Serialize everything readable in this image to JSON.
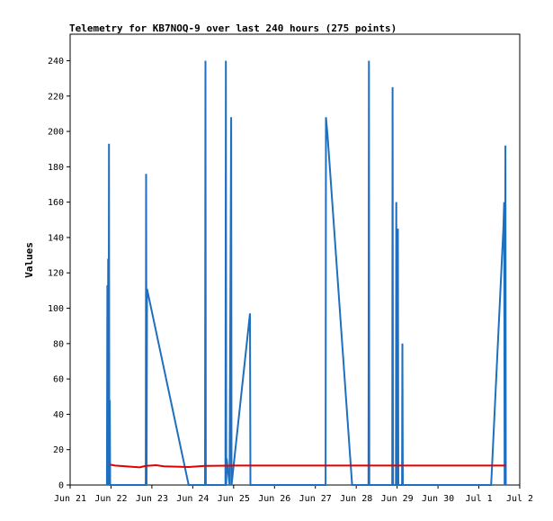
{
  "chart_data": {
    "type": "line",
    "title": "Telemetry for KB7NOQ-9 over last 240 hours (275 points)",
    "xlabel": "",
    "ylabel": "Values",
    "x_ticks": [
      "Jun 21",
      "Jun 22",
      "Jun 23",
      "Jun 24",
      "Jun 25",
      "Jun 26",
      "Jun 27",
      "Jun 28",
      "Jun 29",
      "Jun 30",
      "Jul 1",
      "Jul 2"
    ],
    "xlim": [
      0,
      11
    ],
    "ylim": [
      0,
      255
    ],
    "y_ticks": [
      0,
      20,
      40,
      60,
      80,
      100,
      120,
      140,
      160,
      180,
      200,
      220,
      240
    ],
    "grid": false,
    "series": [
      {
        "color": "#1f6fc0",
        "points": [
          [
            0.9,
            0
          ],
          [
            0.91,
            113
          ],
          [
            0.92,
            0
          ],
          [
            0.93,
            128
          ],
          [
            0.94,
            0
          ],
          [
            0.95,
            193
          ],
          [
            0.96,
            0
          ],
          [
            0.97,
            48
          ],
          [
            0.98,
            0
          ],
          [
            1.85,
            0
          ],
          [
            1.86,
            176
          ],
          [
            1.87,
            0
          ],
          [
            1.88,
            111
          ],
          [
            2.9,
            0
          ],
          [
            3.3,
            0
          ],
          [
            3.31,
            240
          ],
          [
            3.32,
            0
          ],
          [
            3.8,
            0
          ],
          [
            3.81,
            240
          ],
          [
            3.82,
            0
          ],
          [
            3.83,
            15
          ],
          [
            3.9,
            0
          ],
          [
            3.94,
            208
          ],
          [
            3.95,
            0
          ],
          [
            4.4,
            97
          ],
          [
            4.41,
            0
          ],
          [
            6.25,
            0
          ],
          [
            6.26,
            208
          ],
          [
            6.3,
            197
          ],
          [
            6.9,
            0
          ],
          [
            7.3,
            0
          ],
          [
            7.31,
            240
          ],
          [
            7.32,
            0
          ],
          [
            7.88,
            0
          ],
          [
            7.89,
            225
          ],
          [
            7.9,
            0
          ],
          [
            7.97,
            0
          ],
          [
            7.98,
            160
          ],
          [
            7.99,
            0
          ],
          [
            8.01,
            0
          ],
          [
            8.02,
            145
          ],
          [
            8.03,
            0
          ],
          [
            8.12,
            0
          ],
          [
            8.13,
            80
          ],
          [
            8.14,
            0
          ],
          [
            10.3,
            0
          ],
          [
            10.6,
            145
          ],
          [
            10.62,
            160
          ],
          [
            10.63,
            0
          ],
          [
            10.65,
            192
          ],
          [
            10.66,
            0
          ]
        ]
      },
      {
        "color": "#e00000",
        "points": [
          [
            0.98,
            11.5
          ],
          [
            1.1,
            11
          ],
          [
            1.4,
            10.5
          ],
          [
            1.7,
            10
          ],
          [
            1.85,
            10.8
          ],
          [
            2.1,
            11.2
          ],
          [
            2.3,
            10.6
          ],
          [
            2.6,
            10.4
          ],
          [
            2.9,
            10.2
          ],
          [
            3.1,
            10.5
          ],
          [
            3.3,
            10.8
          ],
          [
            4.0,
            11.0
          ],
          [
            6.0,
            11.0
          ],
          [
            8.0,
            11.0
          ],
          [
            10.0,
            11.0
          ],
          [
            10.66,
            11.0
          ]
        ]
      }
    ]
  }
}
